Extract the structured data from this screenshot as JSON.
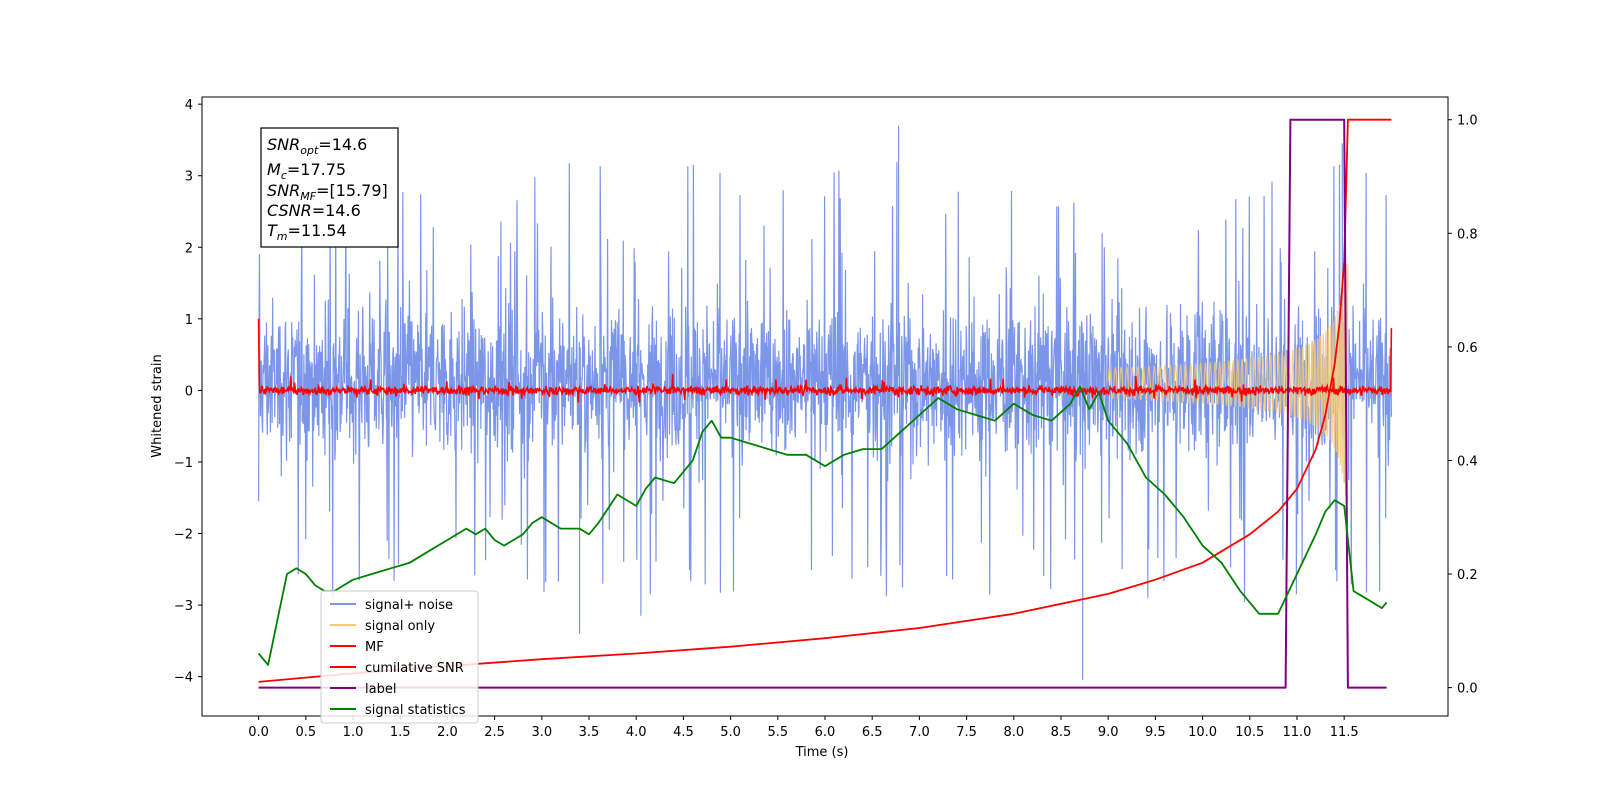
{
  "chart_data": {
    "type": "line",
    "xlabel": "Time (s)",
    "ylabel": "Whitened strain",
    "xlim": [
      -0.6,
      12.6
    ],
    "ylim": [
      -4.55,
      4.1
    ],
    "y2lim": [
      -0.05,
      1.04
    ],
    "x_ticks": [
      "0.0",
      "0.5",
      "1.0",
      "1.5",
      "2.0",
      "2.5",
      "3.0",
      "3.5",
      "4.0",
      "4.5",
      "5.0",
      "5.5",
      "6.0",
      "6.5",
      "7.0",
      "7.5",
      "8.0",
      "8.5",
      "9.0",
      "9.5",
      "10.0",
      "10.5",
      "11.0",
      "11.5"
    ],
    "y_ticks": [
      "4",
      "3",
      "2",
      "1",
      "0",
      "−1",
      "−2",
      "−3",
      "−4"
    ],
    "y2_ticks": [
      "1.0",
      "0.8",
      "0.6",
      "0.4",
      "0.2",
      "0.0"
    ],
    "grid": false,
    "legend_position": "lower-left",
    "annotation": {
      "snr_opt": {
        "base": "SNR",
        "sub": "opt",
        "value": "=14.6"
      },
      "mc": {
        "base": "M",
        "sub": "c",
        "value": "=17.75"
      },
      "snr_mf": {
        "base": "SNR",
        "sub": "MF",
        "value": "=[15.79]"
      },
      "csnr": {
        "base": "CSNR",
        "sub": "",
        "value": "=14.6"
      },
      "tm": {
        "base": "T",
        "sub": "m",
        "value": "=11.54"
      }
    },
    "series": [
      {
        "name": "signal+ noise",
        "color": "#7b96e8",
        "axis": "left",
        "kind": "noise",
        "time_range": [
          0,
          12.0
        ],
        "band": [
          -1.55,
          1.9
        ],
        "spikes_max": 3.7,
        "spikes_min": -4.05
      },
      {
        "name": "signal only",
        "color": "#f4c97a",
        "axis": "left",
        "kind": "chirp",
        "time_range": [
          9.0,
          11.54
        ],
        "peak_amplitude": 2.1
      },
      {
        "name": "MF",
        "color": "#ff0000",
        "axis": "left",
        "kind": "noise",
        "time_range": [
          0,
          12.0
        ],
        "band": [
          -0.08,
          0.1
        ],
        "end_values": [
          1.0,
          0.87
        ]
      },
      {
        "name": "cumilative SNR",
        "color": "#ff0000",
        "axis": "right",
        "x": [
          0.0,
          1.0,
          2.0,
          3.0,
          4.0,
          5.0,
          6.0,
          7.0,
          8.0,
          9.0,
          9.5,
          10.0,
          10.5,
          10.8,
          11.0,
          11.2,
          11.3,
          11.4,
          11.45,
          11.5,
          11.54,
          11.6,
          12.0
        ],
        "y": [
          0.01,
          0.025,
          0.038,
          0.05,
          0.06,
          0.072,
          0.087,
          0.105,
          0.13,
          0.165,
          0.19,
          0.22,
          0.27,
          0.31,
          0.35,
          0.42,
          0.48,
          0.57,
          0.64,
          0.75,
          1.0,
          1.0,
          1.0
        ]
      },
      {
        "name": "label",
        "color": "#800080",
        "axis": "right",
        "x": [
          0.0,
          10.88,
          10.93,
          11.5,
          11.54,
          11.95
        ],
        "y": [
          0.0,
          0.0,
          1.0,
          1.0,
          0.0,
          0.0
        ]
      },
      {
        "name": "signal statistics",
        "color": "#008000",
        "axis": "right",
        "x": [
          0.0,
          0.1,
          0.2,
          0.3,
          0.4,
          0.5,
          0.6,
          0.7,
          0.8,
          0.9,
          1.0,
          1.2,
          1.4,
          1.6,
          1.8,
          2.0,
          2.2,
          2.3,
          2.4,
          2.5,
          2.6,
          2.7,
          2.8,
          2.9,
          3.0,
          3.2,
          3.4,
          3.5,
          3.6,
          3.8,
          4.0,
          4.1,
          4.2,
          4.4,
          4.6,
          4.7,
          4.8,
          4.9,
          5.0,
          5.2,
          5.4,
          5.6,
          5.8,
          6.0,
          6.2,
          6.4,
          6.6,
          6.8,
          7.0,
          7.2,
          7.4,
          7.6,
          7.8,
          8.0,
          8.2,
          8.4,
          8.6,
          8.7,
          8.8,
          8.9,
          9.0,
          9.2,
          9.4,
          9.6,
          9.8,
          10.0,
          10.2,
          10.4,
          10.6,
          10.8,
          11.0,
          11.2,
          11.3,
          11.4,
          11.5,
          11.6,
          11.7,
          11.8,
          11.9,
          11.95
        ],
        "y": [
          0.06,
          0.04,
          0.12,
          0.2,
          0.21,
          0.2,
          0.18,
          0.17,
          0.17,
          0.18,
          0.19,
          0.2,
          0.21,
          0.22,
          0.24,
          0.26,
          0.28,
          0.27,
          0.28,
          0.26,
          0.25,
          0.26,
          0.27,
          0.29,
          0.3,
          0.28,
          0.28,
          0.27,
          0.29,
          0.34,
          0.32,
          0.35,
          0.37,
          0.36,
          0.4,
          0.45,
          0.47,
          0.44,
          0.44,
          0.43,
          0.42,
          0.41,
          0.41,
          0.39,
          0.41,
          0.42,
          0.42,
          0.45,
          0.48,
          0.51,
          0.49,
          0.48,
          0.47,
          0.5,
          0.48,
          0.47,
          0.5,
          0.53,
          0.49,
          0.52,
          0.47,
          0.43,
          0.37,
          0.34,
          0.3,
          0.25,
          0.22,
          0.17,
          0.13,
          0.13,
          0.2,
          0.27,
          0.31,
          0.33,
          0.32,
          0.17,
          0.16,
          0.15,
          0.14,
          0.15
        ]
      }
    ]
  }
}
